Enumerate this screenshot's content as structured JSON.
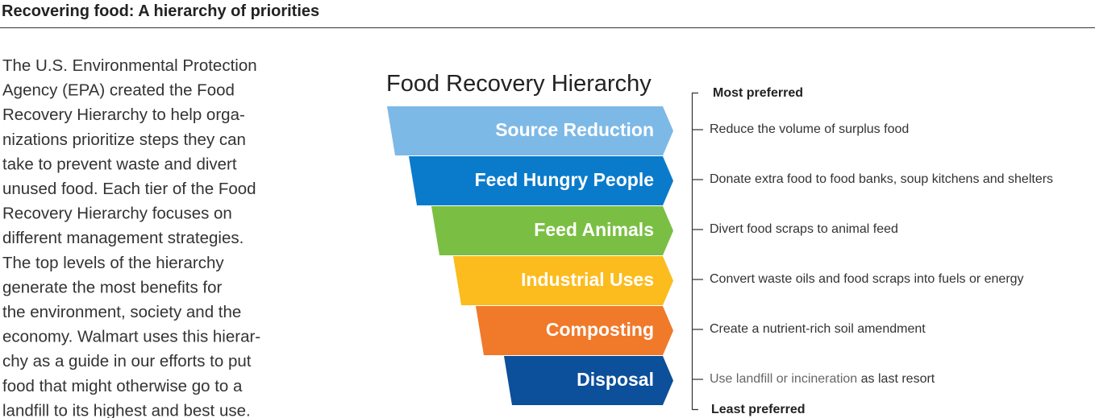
{
  "header": {
    "title": "Recovering food: A hierarchy of priorities"
  },
  "intro": {
    "lines": [
      "The U.S. Environmental Protection",
      "Agency (EPA) created the Food",
      "Recovery Hierarchy to help orga-",
      "nizations prioritize steps they can",
      "take to prevent waste and divert",
      "unused food. Each tier of the Food",
      "Recovery Hierarchy focuses on",
      "different management strategies.",
      "The top levels of the hierarchy",
      "generate the most benefits for",
      "the environment, society and the",
      "economy. Walmart uses this hierar-",
      "chy as a guide in our efforts to put",
      "food that might otherwise go to a",
      "landfill to its highest and best use."
    ]
  },
  "diagram": {
    "title": "Food Recovery Hierarchy",
    "top_label": "Most preferred",
    "bottom_label": "Least preferred",
    "tiers": [
      {
        "label": "Source Reduction",
        "color": "#7db9e6",
        "description": "Reduce the volume of surplus food"
      },
      {
        "label": "Feed Hungry People",
        "color": "#0a7bcb",
        "description": "Donate extra food to food banks, soup kitchens and shelters"
      },
      {
        "label": "Feed Animals",
        "color": "#7abf43",
        "description": "Divert food scraps to animal feed"
      },
      {
        "label": "Industrial Uses",
        "color": "#fcbc1e",
        "description": "Convert waste oils and food scraps into fuels or energy"
      },
      {
        "label": "Composting",
        "color": "#f0792a",
        "description": "Create a nutrient-rich soil amendment"
      },
      {
        "label": "Disposal",
        "color": "#0c4f9a",
        "description": "Use landfill or incineration",
        "description_end": "as last resort"
      }
    ]
  }
}
